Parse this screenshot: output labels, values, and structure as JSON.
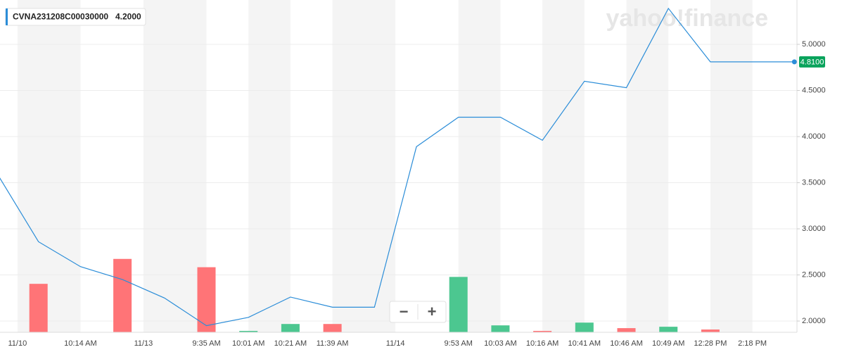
{
  "chart_data": {
    "type": "line",
    "legend_value": "4.2000",
    "watermark": "yahoo!finance",
    "zoom_buttons": [
      "−",
      "+"
    ],
    "last_price": {
      "value": 4.81,
      "label": "4.8100"
    },
    "categories": [
      null,
      "11/10",
      "10:14 AM",
      null,
      "11/13",
      "9:35 AM",
      "10:01 AM",
      "10:21 AM",
      "11:39 AM",
      null,
      "11/14",
      "9:53 AM",
      "10:03 AM",
      "10:16 AM",
      "10:41 AM",
      "10:46 AM",
      "10:49 AM",
      "12:28 PM",
      "2:18 PM",
      null
    ],
    "series": [
      {
        "name": "CVNA231208C00030000",
        "color": "#2b8dd8",
        "values": [
          3.61,
          2.86,
          2.59,
          2.45,
          2.25,
          1.95,
          2.04,
          2.26,
          2.15,
          2.15,
          3.89,
          4.21,
          4.21,
          3.96,
          4.6,
          4.53,
          5.39,
          4.81,
          4.81,
          4.81
        ]
      },
      {
        "type": "bar",
        "axis": "y2",
        "values": [
          null,
          35,
          null,
          53,
          null,
          47,
          1,
          6,
          6,
          null,
          null,
          40,
          5,
          1,
          7,
          3,
          4,
          2,
          null,
          null
        ],
        "colors": [
          null,
          "#ff7477",
          null,
          "#ff7477",
          null,
          "#ff7477",
          "#4cc790",
          "#4cc790",
          "#ff7477",
          null,
          null,
          "#4cc790",
          "#4cc790",
          "#ff7477",
          "#4cc790",
          "#ff7477",
          "#4cc790",
          "#ff7477",
          null,
          null
        ]
      }
    ],
    "ylim": [
      1.878,
      5.481
    ],
    "yticks": [
      {
        "value": 2,
        "label": "2.0000"
      },
      {
        "value": 2.5,
        "label": "2.5000"
      },
      {
        "value": 3,
        "label": "3.0000"
      },
      {
        "value": 3.5,
        "label": "3.5000"
      },
      {
        "value": 4,
        "label": "4.0000"
      },
      {
        "value": 4.5,
        "label": "4.5000"
      },
      {
        "value": 5,
        "label": "5.0000"
      }
    ],
    "y2lim": [
      0,
      240
    ],
    "grid": true
  }
}
